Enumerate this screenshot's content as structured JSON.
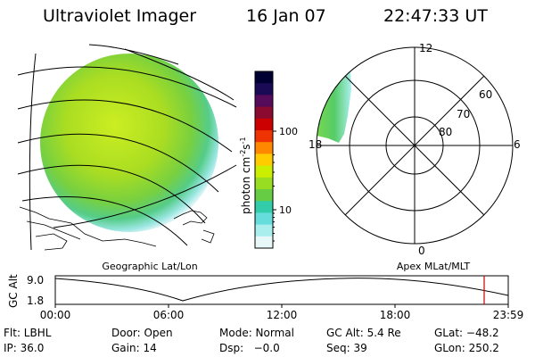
{
  "header": {
    "title": "Ultraviolet Imager",
    "date": "16 Jan 07",
    "time": "22:47:33 UT"
  },
  "colorbar": {
    "unit_label": "photon cm",
    "unit_exp1": "-2",
    "unit_mid": "s",
    "unit_exp2": "-1",
    "ticks": [
      {
        "label": "100",
        "value": 100
      },
      {
        "label": "10",
        "value": 10
      }
    ],
    "colors": [
      "#000033",
      "#1a0a55",
      "#550a5a",
      "#8a0a30",
      "#cc0000",
      "#ee3300",
      "#ff8800",
      "#ffcc00",
      "#ccee00",
      "#99dd22",
      "#66cc44",
      "#33ccaa",
      "#66dddd",
      "#aaeeee",
      "#e8f8f8"
    ]
  },
  "polar_plot": {
    "mlt_labels": [
      {
        "text": "12",
        "dir": "top"
      },
      {
        "text": "18",
        "dir": "left"
      },
      {
        "text": "6",
        "dir": "right"
      },
      {
        "text": "0",
        "dir": "bottom"
      }
    ],
    "lat_labels": [
      "60",
      "70",
      "80"
    ],
    "caption": "Apex MLat/MLT"
  },
  "globe": {
    "caption": "Geographic Lat/Lon"
  },
  "timeline": {
    "ylabel": "GC Alt",
    "y_ticks": [
      "9.0",
      "1.8"
    ],
    "x_ticks": [
      "00:00",
      "06:00",
      "12:00",
      "18:00",
      "23:59"
    ],
    "current_color": "#cc0000"
  },
  "footer": [
    [
      "Flt: LBHL",
      "Door: Open",
      "Mode: Normal",
      "GC Alt: 5.4 Re",
      "GLat: −48.2"
    ],
    [
      "IP: 36.0",
      "Gain: 14",
      "Dsp:   −0.0",
      "Seq: 39",
      "GLon: 250.2"
    ]
  ]
}
